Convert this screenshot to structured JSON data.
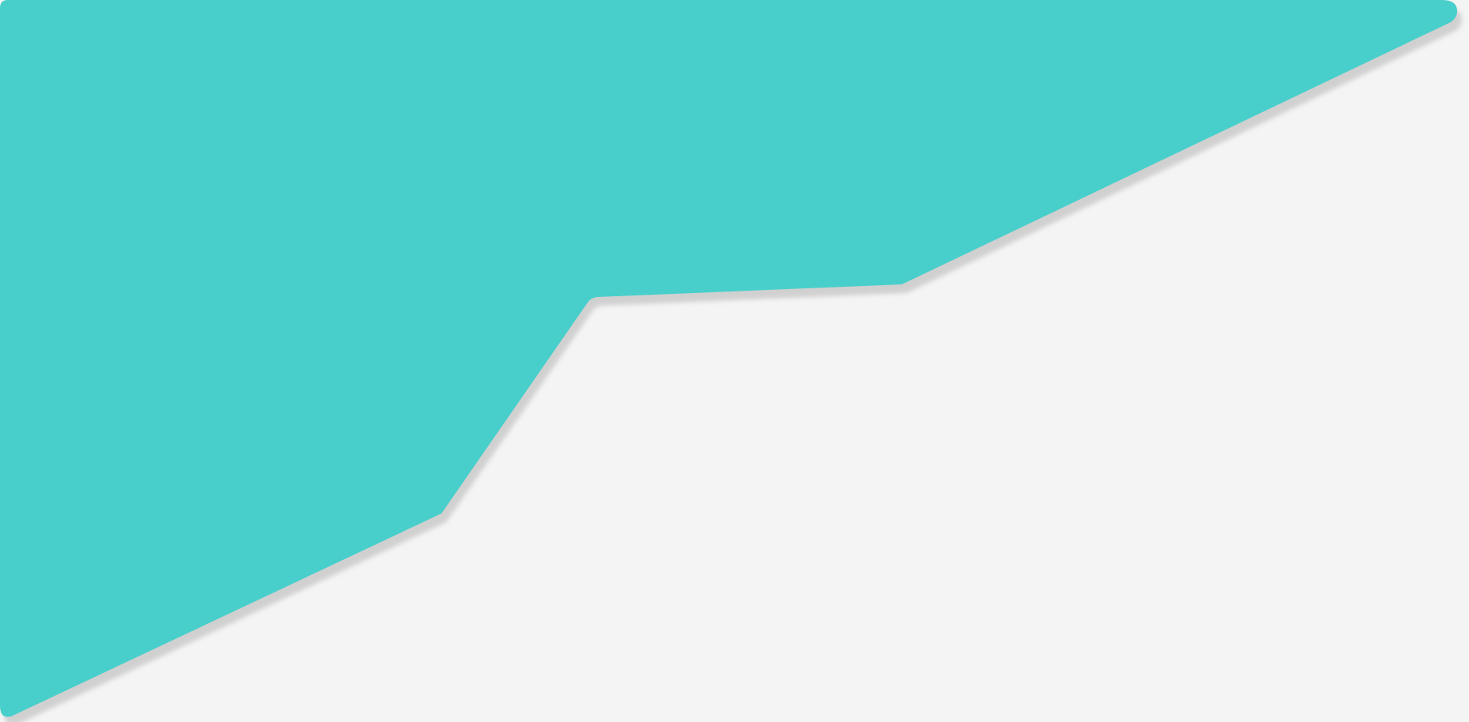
{
  "canvas": {
    "background_color": "#f4f4f4"
  },
  "shape": {
    "name": "teal-polygon",
    "fill_color": "#48cfcb",
    "shadow_color": "#b9b9b9"
  }
}
